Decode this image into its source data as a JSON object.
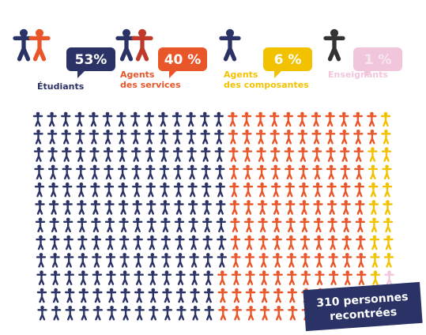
{
  "chart_data": {
    "type": "pictogram",
    "categories": [
      "Étudiants",
      "Agents des services",
      "Agents des composantes",
      "Enseignants"
    ],
    "values": [
      53,
      40,
      6,
      1
    ],
    "value_labels": [
      "53%",
      "40 %",
      "6 %",
      "1 %"
    ],
    "colors": [
      "#2b3366",
      "#e8562a",
      "#f2c200",
      "#f1c6dc"
    ],
    "note": "310 personnes recontrées"
  }
}
